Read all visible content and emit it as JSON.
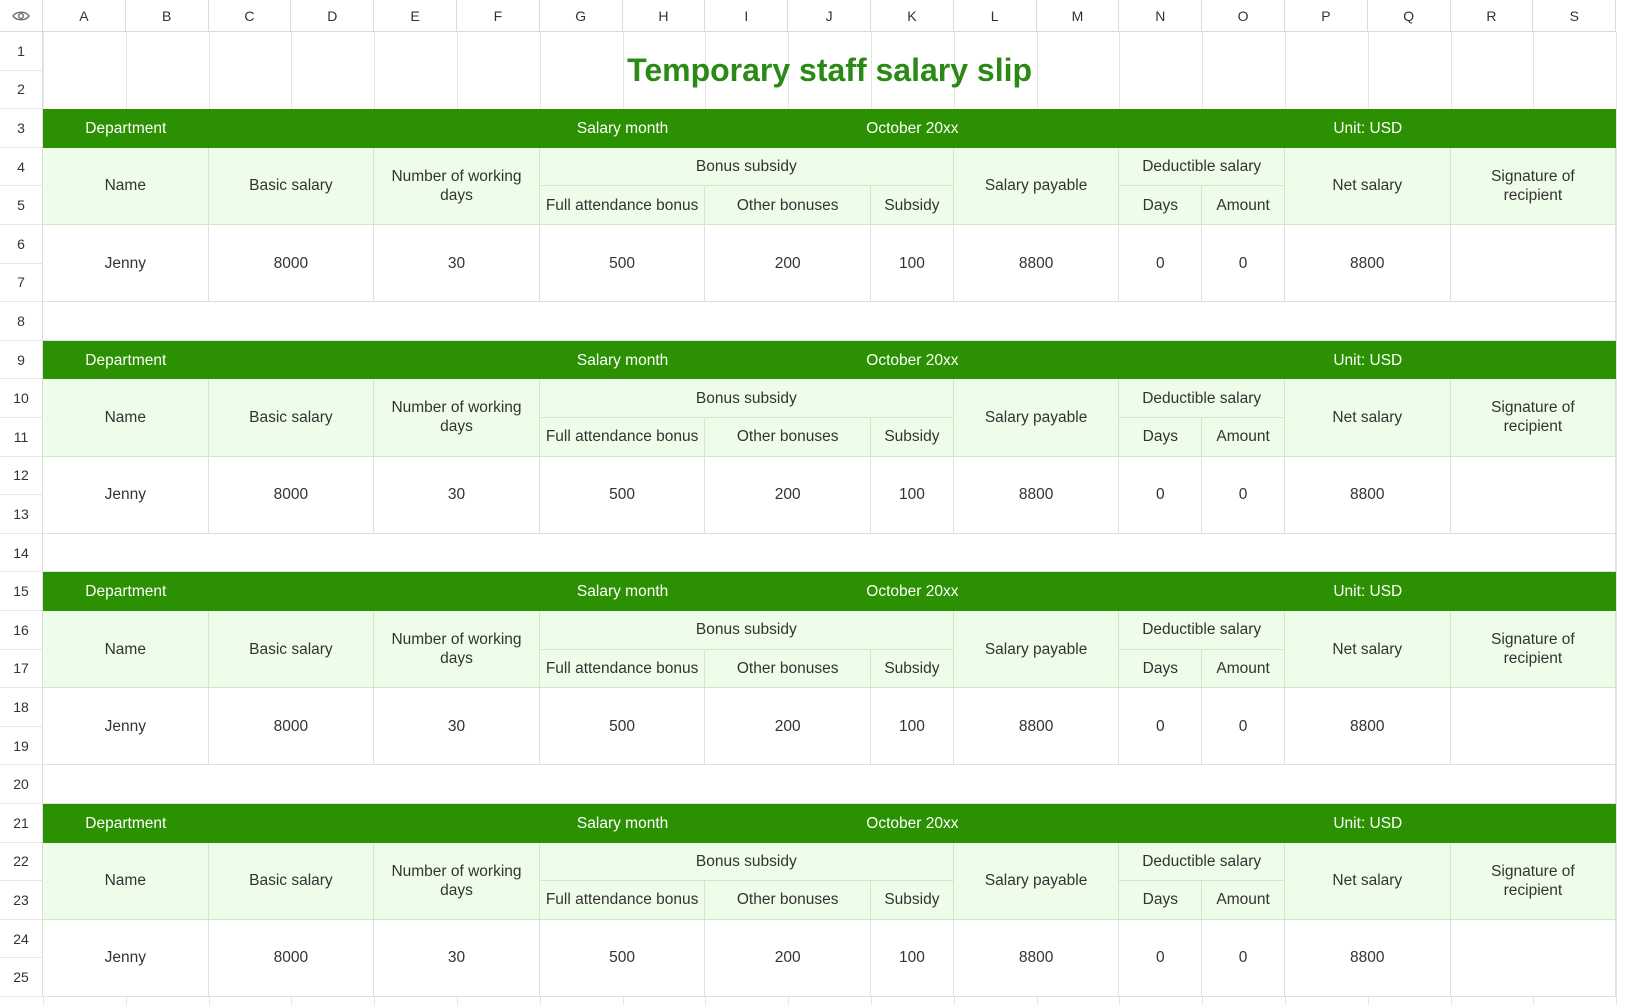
{
  "columns": [
    "A",
    "B",
    "C",
    "D",
    "E",
    "F",
    "G",
    "H",
    "I",
    "J",
    "K",
    "L",
    "M",
    "N",
    "O",
    "P",
    "Q",
    "R",
    "S"
  ],
  "rows": [
    "1",
    "2",
    "3",
    "4",
    "5",
    "6",
    "7",
    "8",
    "9",
    "10",
    "11",
    "12",
    "13",
    "14",
    "15",
    "16",
    "17",
    "18",
    "19",
    "20",
    "21",
    "22",
    "23",
    "24",
    "25"
  ],
  "title": "Temporary staff salary slip",
  "colors": {
    "header_green": "#2b9102",
    "subheader_light": "#eefde9",
    "title_green": "#2b8a16"
  },
  "icons": {
    "corner": "eye-icon"
  },
  "header_row": {
    "department": "Department",
    "department_value": "",
    "salary_month": "Salary month",
    "month_value": "October 20xx",
    "unit": "Unit: USD"
  },
  "column_headers": {
    "name": "Name",
    "basic_salary": "Basic salary",
    "working_days": "Number of working days",
    "bonus_subsidy": "Bonus subsidy",
    "full_attendance_bonus": "Full attendance bonus",
    "other_bonuses": "Other bonuses",
    "subsidy": "Subsidy",
    "salary_payable": "Salary payable",
    "deductible_salary": "Deductible salary",
    "days": "Days",
    "amount": "Amount",
    "net_salary": "Net salary",
    "signature": "Signature of recipient"
  },
  "slips": [
    {
      "name": "Jenny",
      "basic_salary": "8000",
      "working_days": "30",
      "full_attendance_bonus": "500",
      "other_bonuses": "200",
      "subsidy": "100",
      "salary_payable": "8800",
      "deduct_days": "0",
      "deduct_amount": "0",
      "net_salary": "8800",
      "signature": ""
    },
    {
      "name": "Jenny",
      "basic_salary": "8000",
      "working_days": "30",
      "full_attendance_bonus": "500",
      "other_bonuses": "200",
      "subsidy": "100",
      "salary_payable": "8800",
      "deduct_days": "0",
      "deduct_amount": "0",
      "net_salary": "8800",
      "signature": ""
    },
    {
      "name": "Jenny",
      "basic_salary": "8000",
      "working_days": "30",
      "full_attendance_bonus": "500",
      "other_bonuses": "200",
      "subsidy": "100",
      "salary_payable": "8800",
      "deduct_days": "0",
      "deduct_amount": "0",
      "net_salary": "8800",
      "signature": ""
    },
    {
      "name": "Jenny",
      "basic_salary": "8000",
      "working_days": "30",
      "full_attendance_bonus": "500",
      "other_bonuses": "200",
      "subsidy": "100",
      "salary_payable": "8800",
      "deduct_days": "0",
      "deduct_amount": "0",
      "net_salary": "8800",
      "signature": ""
    }
  ]
}
